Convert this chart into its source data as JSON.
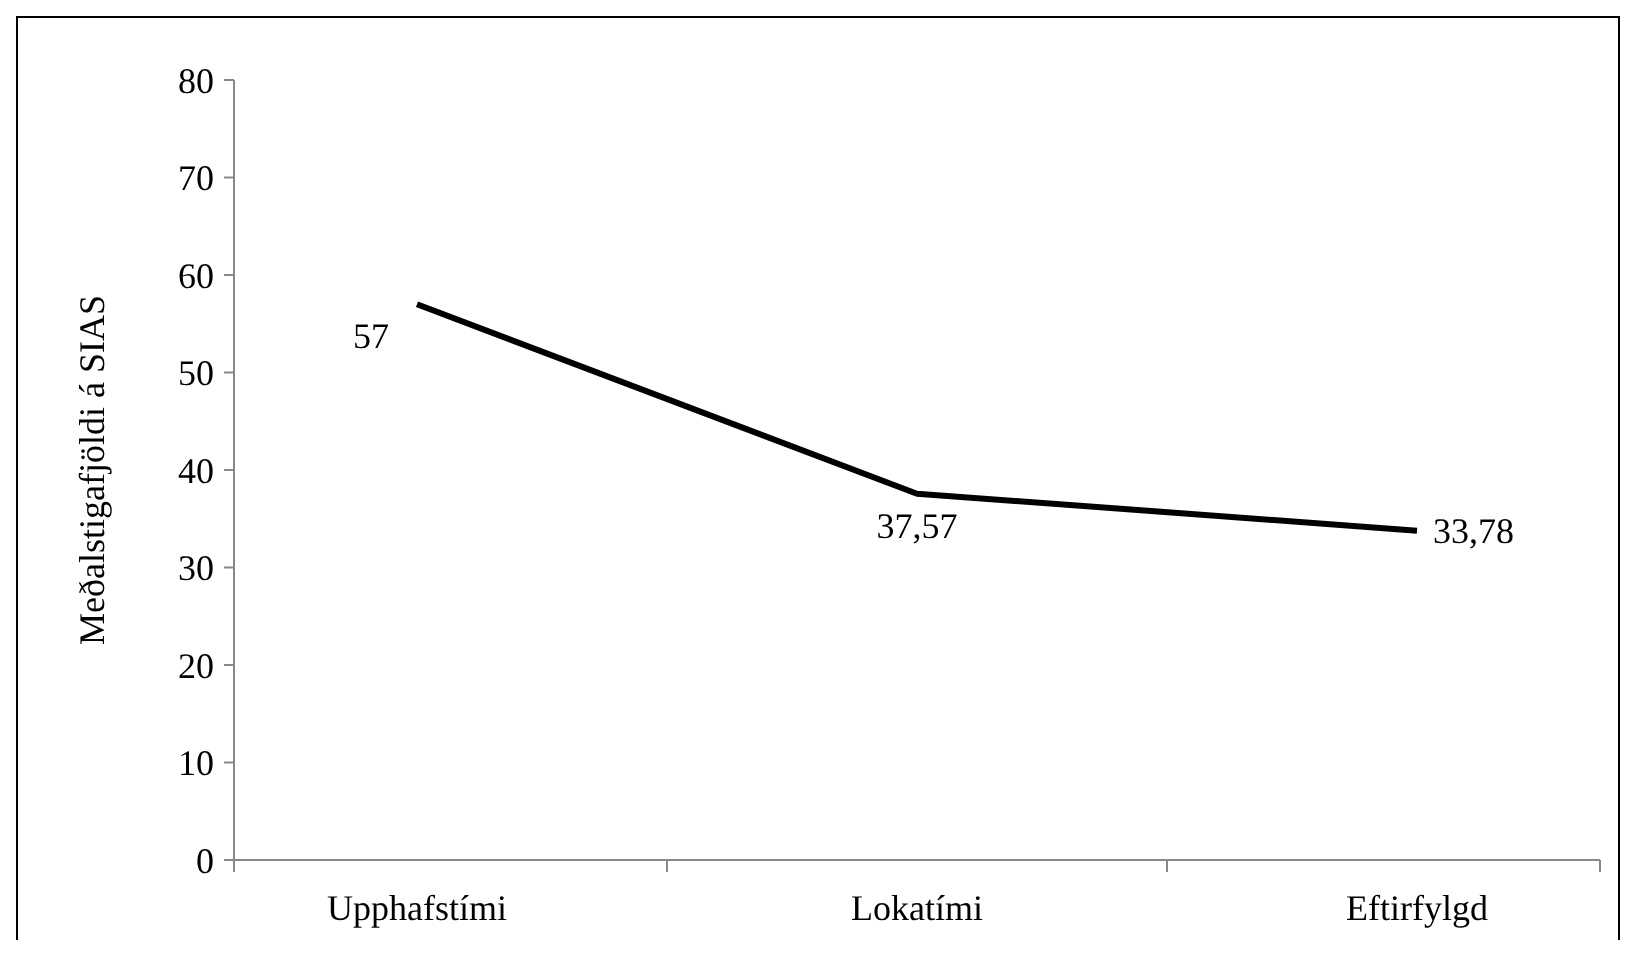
{
  "chart_data": {
    "type": "line",
    "ylabel": "Meðalstigafjöldi á SIAS",
    "categories": [
      "Upphafstími",
      "Lokatími",
      "Eftirfylgd"
    ],
    "series": [
      {
        "color": "#000000",
        "values": [
          57,
          37.57,
          33.78
        ],
        "value_labels": [
          "57",
          "37,57",
          "33,78"
        ]
      }
    ],
    "ylim": [
      0,
      80
    ],
    "yticks": [
      0,
      10,
      20,
      30,
      40,
      50,
      60,
      70,
      80
    ],
    "grid": false,
    "marker": "none",
    "line_style": "solid"
  }
}
